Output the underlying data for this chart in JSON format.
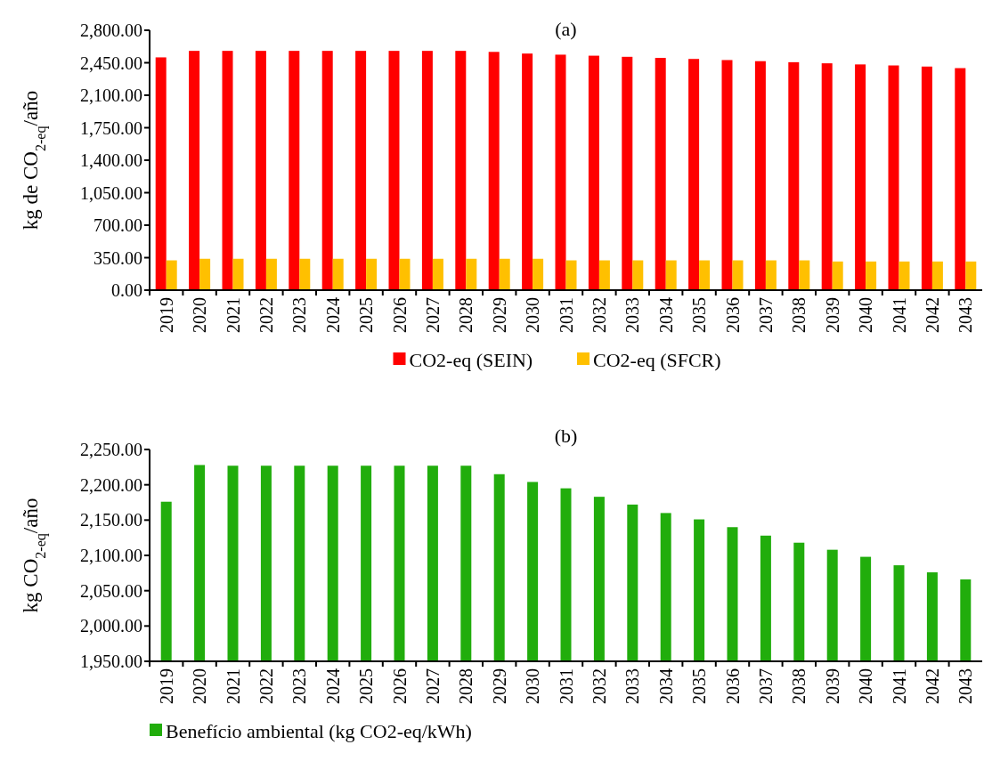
{
  "chart_data": [
    {
      "type": "bar",
      "title": "(a)",
      "ylabel": "kg de CO$_{2-eq}$/año",
      "categories": [
        "2019",
        "2020",
        "2021",
        "2022",
        "2023",
        "2024",
        "2025",
        "2026",
        "2027",
        "2028",
        "2029",
        "2030",
        "2031",
        "2032",
        "2033",
        "2034",
        "2035",
        "2036",
        "2037",
        "2038",
        "2039",
        "2040",
        "2041",
        "2042",
        "2043"
      ],
      "series": [
        {
          "name": "CO2-eq (SEIN)",
          "color": "#ff0000",
          "values": [
            2508,
            2578,
            2578,
            2578,
            2578,
            2578,
            2578,
            2578,
            2578,
            2578,
            2567,
            2549,
            2537,
            2526,
            2514,
            2502,
            2491,
            2479,
            2467,
            2456,
            2444,
            2432,
            2421,
            2409,
            2392
          ]
        },
        {
          "name": "CO2-eq (SFCR)",
          "color": "#ffc000",
          "values": [
            321,
            338,
            338,
            338,
            338,
            338,
            338,
            338,
            338,
            338,
            338,
            338,
            321,
            321,
            321,
            321,
            321,
            321,
            321,
            321,
            309,
            309,
            309,
            309,
            309
          ]
        }
      ],
      "ylim": [
        0,
        2800
      ],
      "yticks": [
        {
          "value": 0,
          "label": "0.00"
        },
        {
          "value": 350,
          "label": "350.00"
        },
        {
          "value": 700,
          "label": "700.00"
        },
        {
          "value": 1050,
          "label": "1,050.00"
        },
        {
          "value": 1400,
          "label": "1,400.00"
        },
        {
          "value": 1750,
          "label": "1,750.00"
        },
        {
          "value": 2100,
          "label": "2,100.00"
        },
        {
          "value": 2450,
          "label": "2,450.00"
        },
        {
          "value": 2800,
          "label": "2,800.00"
        }
      ],
      "legend": "bottom"
    },
    {
      "type": "bar",
      "title": "(b)",
      "ylabel": "kg CO$_{2-eq}$/año",
      "categories": [
        "2019",
        "2020",
        "2021",
        "2022",
        "2023",
        "2024",
        "2025",
        "2026",
        "2027",
        "2028",
        "2029",
        "2030",
        "2031",
        "2032",
        "2033",
        "2034",
        "2035",
        "2036",
        "2037",
        "2038",
        "2039",
        "2040",
        "2041",
        "2042",
        "2043"
      ],
      "series": [
        {
          "name": "Benefício ambiental (kg CO2-eq/kWh)",
          "color": "#21ad0c",
          "values": [
            2176,
            2228,
            2227,
            2227,
            2227,
            2227,
            2227,
            2227,
            2227,
            2227,
            2215,
            2204,
            2195,
            2183,
            2172,
            2160,
            2151,
            2140,
            2128,
            2118,
            2108,
            2098,
            2086,
            2076,
            2066
          ]
        }
      ],
      "ylim": [
        1950,
        2250
      ],
      "yticks": [
        {
          "value": 1950,
          "label": "1,950.00"
        },
        {
          "value": 2000,
          "label": "2,000.00"
        },
        {
          "value": 2050,
          "label": "2,050.00"
        },
        {
          "value": 2100,
          "label": "2,100.00"
        },
        {
          "value": 2150,
          "label": "2,150.00"
        },
        {
          "value": 2200,
          "label": "2,200.00"
        },
        {
          "value": 2250,
          "label": "2,250.00"
        }
      ],
      "legend": "bottom"
    }
  ]
}
